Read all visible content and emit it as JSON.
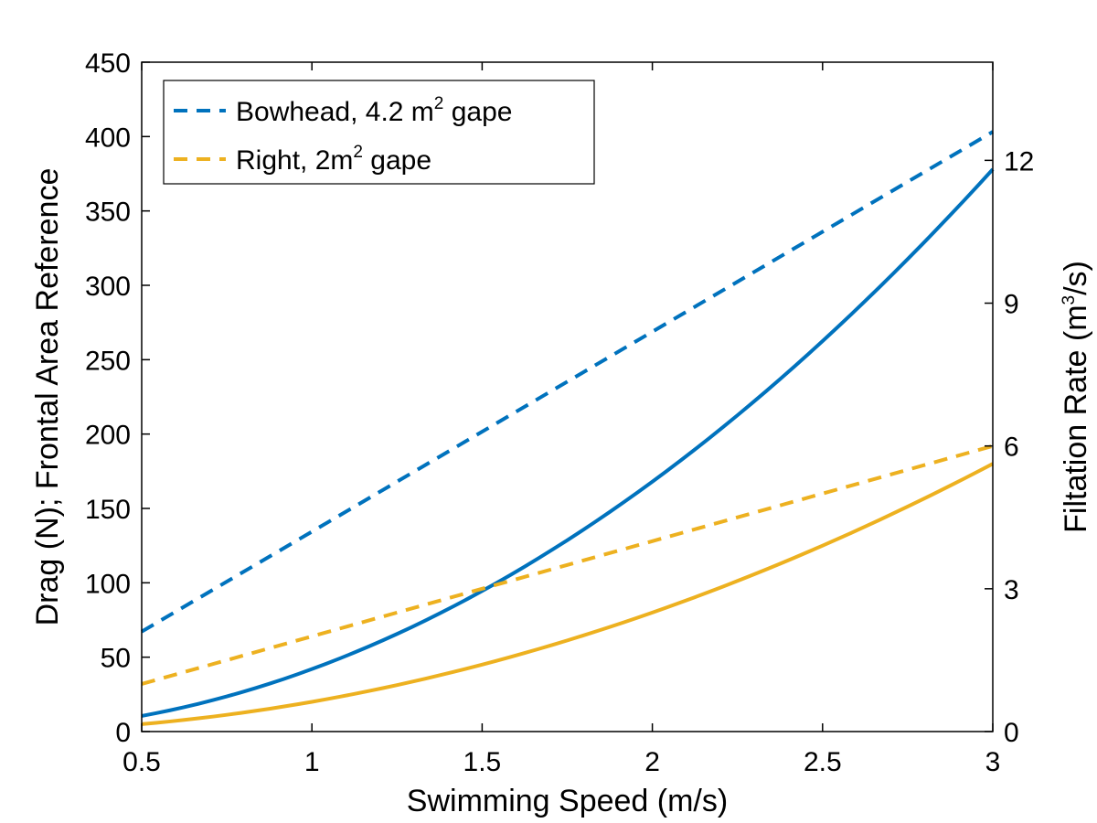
{
  "chart_data": {
    "type": "line",
    "xlabel": "Swimming Speed (m/s)",
    "ylabel_left": "Drag (N); Frontal Area Reference",
    "ylabel_right_prefix": "Filtation Rate (m",
    "ylabel_right_sup": "3",
    "ylabel_right_suffix": "/s)",
    "xlim": [
      0.5,
      3
    ],
    "ylim_left": [
      0,
      450
    ],
    "ylim_right": [
      0,
      14.0625
    ],
    "x_ticks": [
      "0.5",
      "1",
      "1.5",
      "2",
      "2.5",
      "3"
    ],
    "y_left_ticks": [
      "0",
      "50",
      "100",
      "150",
      "200",
      "250",
      "300",
      "350",
      "400",
      "450"
    ],
    "y_right_ticks": [
      "0",
      "3",
      "6",
      "9",
      "12"
    ],
    "grid": false,
    "legend_position": "top-left",
    "legend": [
      {
        "text": "Bowhead, 4.2 m",
        "sup": "2",
        "suffix": " gape",
        "color": "#0072BD",
        "dash": "dashed"
      },
      {
        "text": "Right, 2m",
        "sup": "2",
        "suffix": " gape",
        "color": "#EDB120",
        "dash": "dashed"
      }
    ],
    "series": [
      {
        "kind": "drag",
        "axis": "left",
        "style": "solid",
        "color": "#0072BD",
        "x": [
          0.5,
          0.75,
          1.0,
          1.25,
          1.5,
          1.75,
          2.0,
          2.25,
          2.5,
          2.75,
          3.0
        ],
        "y": [
          10.5,
          23.6,
          42,
          65.6,
          94.5,
          128.6,
          168,
          212.6,
          262.5,
          317.6,
          378
        ]
      },
      {
        "kind": "drag",
        "axis": "left",
        "style": "solid",
        "color": "#EDB120",
        "x": [
          0.5,
          0.75,
          1.0,
          1.25,
          1.5,
          1.75,
          2.0,
          2.25,
          2.5,
          2.75,
          3.0
        ],
        "y": [
          5,
          11.25,
          20,
          31.25,
          45,
          61.25,
          80,
          101.25,
          125,
          151.25,
          180
        ]
      },
      {
        "kind": "filtration",
        "axis": "right",
        "style": "dashed",
        "color": "#0072BD",
        "x": [
          0.5,
          3.0
        ],
        "y": [
          2.1,
          12.6
        ]
      },
      {
        "kind": "filtration",
        "axis": "right",
        "style": "dashed",
        "color": "#EDB120",
        "x": [
          0.5,
          3.0
        ],
        "y": [
          1.0,
          6.0
        ]
      }
    ]
  }
}
